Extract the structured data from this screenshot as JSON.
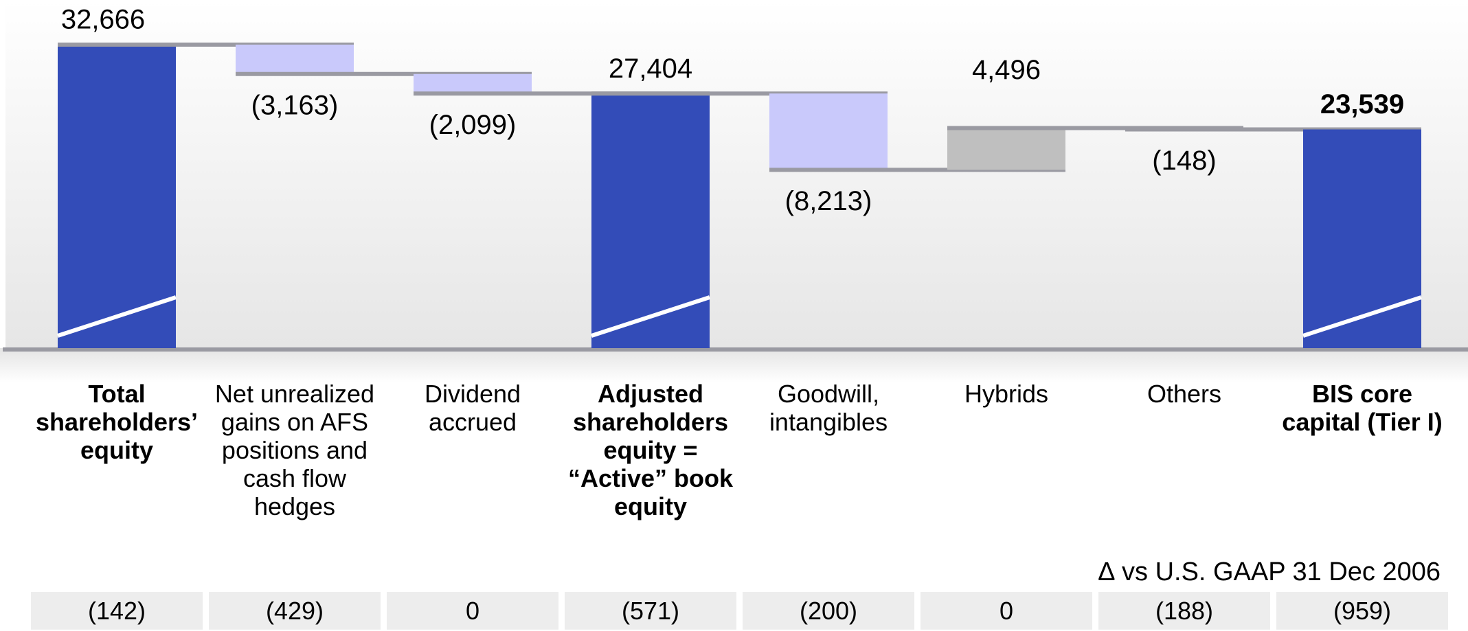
{
  "chart_data": {
    "type": "waterfall",
    "categories": [
      "Total shareholders’ equity",
      "Net unrealized gains on AFS positions and cash flow hedges",
      "Dividend accrued",
      "Adjusted shareholders equity = “Active” book equity",
      "Goodwill, intangibles",
      "Hybrids",
      "Others",
      "BIS core capital (Tier I)"
    ],
    "values": [
      32666,
      -3163,
      -2099,
      27404,
      -8213,
      4496,
      -148,
      23539
    ],
    "value_labels": [
      "32,666",
      "(3,163)",
      "(2,099)",
      "27,404",
      "(8,213)",
      "4,496",
      "(148)",
      "23,539"
    ],
    "is_total": [
      true,
      false,
      false,
      true,
      false,
      false,
      false,
      true
    ],
    "colors": {
      "total": "#334cb8",
      "decrease": "#c9c9fb",
      "increase": "#bfbfbf"
    },
    "bold_categories": [
      0,
      3,
      7
    ],
    "bold_value_labels": [
      7
    ]
  },
  "delta_table": {
    "title": "∆ vs U.S. GAAP 31 Dec 2006",
    "values": [
      "(142)",
      "(429)",
      "0",
      "(571)",
      "(200)",
      "0",
      "(188)",
      "(959)"
    ]
  }
}
